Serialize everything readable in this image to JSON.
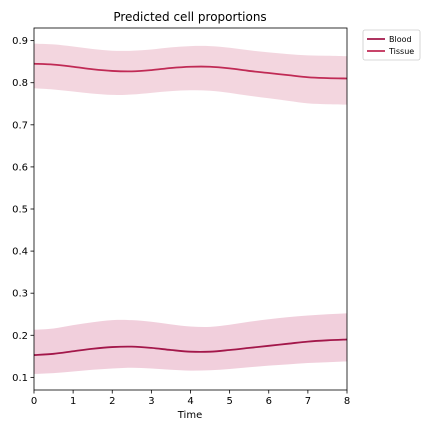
{
  "chart_data": {
    "type": "line",
    "title": "Predicted cell proportions",
    "xlabel": "Time",
    "ylabel": "",
    "xlim": [
      0,
      8
    ],
    "ylim": [
      0.07,
      0.93
    ],
    "xticks": [
      0,
      1,
      2,
      3,
      4,
      5,
      6,
      7,
      8
    ],
    "yticks": [
      0.1,
      0.2,
      0.3,
      0.4,
      0.5,
      0.6,
      0.7,
      0.8,
      0.9
    ],
    "xtick_labels": [
      "0",
      "1",
      "2",
      "3",
      "4",
      "5",
      "6",
      "7",
      "8"
    ],
    "ytick_labels": [
      "0.1",
      "0.2",
      "0.3",
      "0.4",
      "0.5",
      "0.6",
      "0.7",
      "0.8",
      "0.9"
    ],
    "grid": false,
    "legend_position": "outside-top-right",
    "x": [
      0,
      0.5,
      1,
      1.5,
      2,
      2.5,
      3,
      3.5,
      4,
      4.5,
      5,
      5.5,
      6,
      6.5,
      7,
      7.5,
      8
    ],
    "series": [
      {
        "name": "Blood",
        "color": "#a3174a",
        "band_color": "#e5a8c0",
        "values": [
          0.153,
          0.156,
          0.162,
          0.168,
          0.172,
          0.173,
          0.17,
          0.165,
          0.161,
          0.161,
          0.165,
          0.17,
          0.175,
          0.18,
          0.185,
          0.188,
          0.19
        ],
        "lower": [
          0.108,
          0.11,
          0.114,
          0.118,
          0.121,
          0.123,
          0.121,
          0.118,
          0.116,
          0.117,
          0.12,
          0.124,
          0.128,
          0.131,
          0.134,
          0.136,
          0.138
        ],
        "upper": [
          0.213,
          0.216,
          0.224,
          0.231,
          0.236,
          0.236,
          0.232,
          0.226,
          0.221,
          0.22,
          0.225,
          0.232,
          0.238,
          0.243,
          0.247,
          0.25,
          0.252
        ]
      },
      {
        "name": "Tissue",
        "color": "#c02a55",
        "band_color": "#eab5c4",
        "values": [
          0.845,
          0.843,
          0.838,
          0.832,
          0.828,
          0.827,
          0.83,
          0.835,
          0.838,
          0.838,
          0.834,
          0.828,
          0.823,
          0.818,
          0.813,
          0.811,
          0.81
        ],
        "lower": [
          0.787,
          0.784,
          0.779,
          0.774,
          0.771,
          0.772,
          0.776,
          0.78,
          0.782,
          0.781,
          0.776,
          0.769,
          0.763,
          0.757,
          0.751,
          0.749,
          0.748
        ],
        "upper": [
          0.893,
          0.891,
          0.886,
          0.88,
          0.876,
          0.876,
          0.879,
          0.884,
          0.887,
          0.887,
          0.883,
          0.877,
          0.872,
          0.868,
          0.865,
          0.864,
          0.863
        ]
      }
    ]
  }
}
